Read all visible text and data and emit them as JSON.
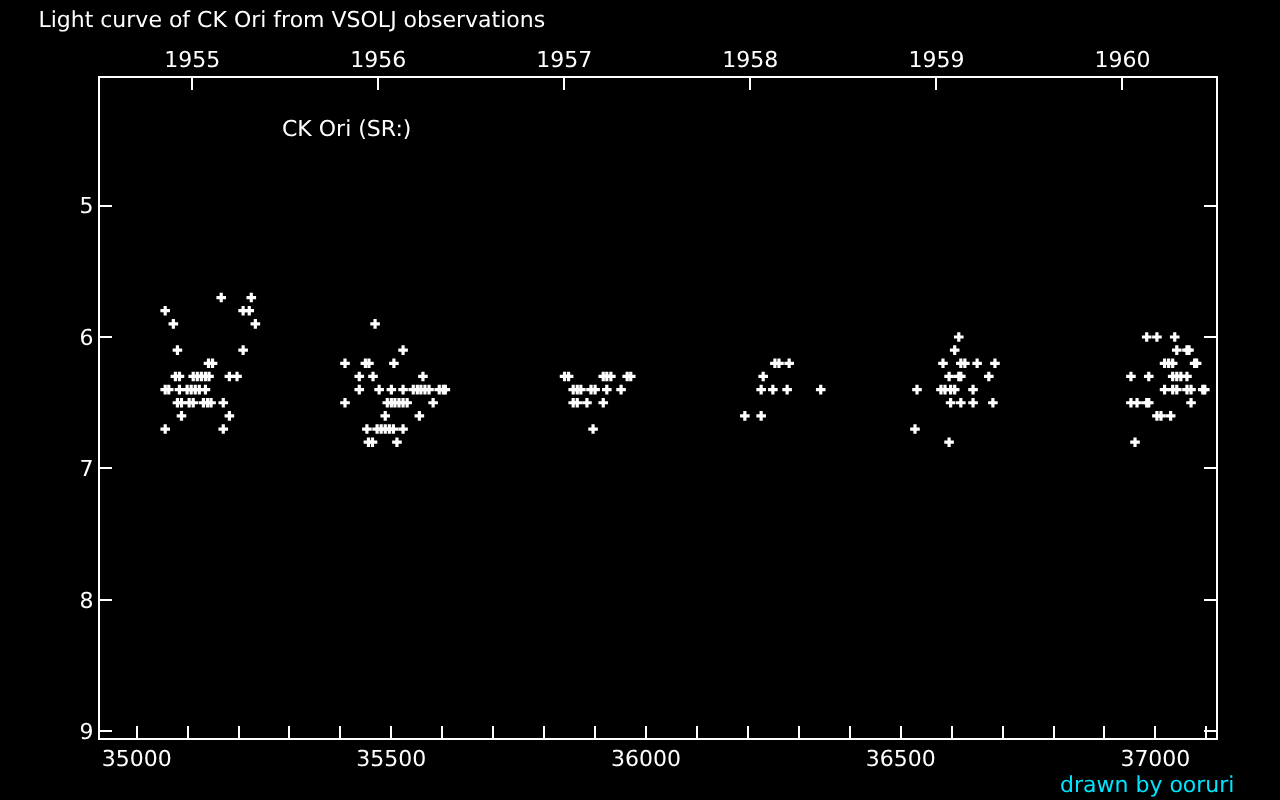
{
  "chart_data": {
    "type": "scatter",
    "title": "Light curve of CK Ori from VSOLJ observations",
    "annotations": [
      "CK Ori (SR:)",
      "drawn by ooruri"
    ],
    "marker": "cross",
    "grid": false,
    "xlim": [
      34928,
      37119
    ],
    "ylim": [
      9.05,
      4.03
    ],
    "xticks": [
      35000,
      {
        "value": 35100,
        "label": null
      },
      {
        "value": 35200,
        "label": null
      },
      {
        "value": 35300,
        "label": null
      },
      {
        "value": 35400,
        "label": null
      },
      35500,
      {
        "value": 35600,
        "label": null
      },
      {
        "value": 35700,
        "label": null
      },
      {
        "value": 35800,
        "label": null
      },
      {
        "value": 35900,
        "label": null
      },
      36000,
      {
        "value": 36100,
        "label": null
      },
      {
        "value": 36200,
        "label": null
      },
      {
        "value": 36300,
        "label": null
      },
      {
        "value": 36400,
        "label": null
      },
      36500,
      {
        "value": 36600,
        "label": null
      },
      {
        "value": 36700,
        "label": null
      },
      {
        "value": 36800,
        "label": null
      },
      {
        "value": 36900,
        "label": null
      },
      37000,
      {
        "value": 37100,
        "label": null
      }
    ],
    "yticks": [
      5,
      6,
      7,
      8,
      9
    ],
    "x2lim": [
      1954.504,
      1960.503
    ],
    "x2ticks": [
      1955,
      1956,
      1957,
      1958,
      1959,
      1960
    ],
    "series": [
      {
        "color": "#ffffff",
        "x": [
          35166,
          35225,
          35056,
          35221,
          35209,
          35072,
          35233,
          35080,
          35209,
          35141,
          35149,
          35076,
          35084,
          35111,
          35119,
          35127,
          35135,
          35142,
          35182,
          35197,
          35056,
          35063,
          35084,
          35099,
          35107,
          35115,
          35123,
          35135,
          35080,
          35088,
          35103,
          35111,
          35131,
          35139,
          35146,
          35170,
          35088,
          35182,
          35056,
          35170,
          35468,
          35523,
          35409,
          35449,
          35456,
          35505,
          35437,
          35464,
          35562,
          35437,
          35476,
          35500,
          35523,
          35543,
          35551,
          35558,
          35566,
          35574,
          35594,
          35602,
          35606,
          35409,
          35492,
          35500,
          35507,
          35515,
          35523,
          35531,
          35582,
          35488,
          35555,
          35452,
          35472,
          35480,
          35488,
          35496,
          35504,
          35523,
          35455,
          35463,
          35511,
          35840,
          35848,
          35916,
          35923,
          35931,
          35963,
          35970,
          35857,
          35865,
          35872,
          35892,
          35900,
          35923,
          35951,
          35857,
          35865,
          35884,
          35916,
          35896,
          36253,
          36261,
          36281,
          36230,
          36226,
          36249,
          36277,
          36343,
          36194,
          36226,
          36614,
          36606,
          36583,
          36618,
          36626,
          36650,
          36685,
          36595,
          36614,
          36618,
          36673,
          36532,
          36579,
          36587,
          36598,
          36606,
          36642,
          36598,
          36618,
          36642,
          36681,
          36528,
          36595,
          36983,
          37003,
          37038,
          37042,
          37062,
          37066,
          37018,
          37026,
          37034,
          37077,
          37081,
          36952,
          36987,
          37034,
          37042,
          37050,
          37062,
          37018,
          37034,
          37042,
          37062,
          37070,
          37093,
          37097,
          36952,
          36964,
          36983,
          36987,
          37070,
          37003,
          37011,
          37030,
          36960
        ],
        "values": [
          5.7,
          5.7,
          5.8,
          5.8,
          5.8,
          5.9,
          5.9,
          6.1,
          6.1,
          6.2,
          6.2,
          6.3,
          6.3,
          6.3,
          6.3,
          6.3,
          6.3,
          6.3,
          6.3,
          6.3,
          6.4,
          6.4,
          6.4,
          6.4,
          6.4,
          6.4,
          6.4,
          6.4,
          6.5,
          6.5,
          6.5,
          6.5,
          6.5,
          6.5,
          6.5,
          6.5,
          6.6,
          6.6,
          6.7,
          6.7,
          5.9,
          6.1,
          6.2,
          6.2,
          6.2,
          6.2,
          6.3,
          6.3,
          6.3,
          6.4,
          6.4,
          6.4,
          6.4,
          6.4,
          6.4,
          6.4,
          6.4,
          6.4,
          6.4,
          6.4,
          6.4,
          6.5,
          6.5,
          6.5,
          6.5,
          6.5,
          6.5,
          6.5,
          6.5,
          6.6,
          6.6,
          6.7,
          6.7,
          6.7,
          6.7,
          6.7,
          6.7,
          6.7,
          6.8,
          6.8,
          6.8,
          6.3,
          6.3,
          6.3,
          6.3,
          6.3,
          6.3,
          6.3,
          6.4,
          6.4,
          6.4,
          6.4,
          6.4,
          6.4,
          6.4,
          6.5,
          6.5,
          6.5,
          6.5,
          6.7,
          6.2,
          6.2,
          6.2,
          6.3,
          6.4,
          6.4,
          6.4,
          6.4,
          6.6,
          6.6,
          6.0,
          6.1,
          6.2,
          6.2,
          6.2,
          6.2,
          6.2,
          6.3,
          6.3,
          6.3,
          6.3,
          6.4,
          6.4,
          6.4,
          6.4,
          6.4,
          6.4,
          6.5,
          6.5,
          6.5,
          6.5,
          6.7,
          6.8,
          6.0,
          6.0,
          6.0,
          6.1,
          6.1,
          6.1,
          6.2,
          6.2,
          6.2,
          6.2,
          6.2,
          6.3,
          6.3,
          6.3,
          6.3,
          6.3,
          6.3,
          6.4,
          6.4,
          6.4,
          6.4,
          6.4,
          6.4,
          6.4,
          6.5,
          6.5,
          6.5,
          6.5,
          6.5,
          6.6,
          6.6,
          6.6,
          6.8
        ]
      }
    ]
  }
}
